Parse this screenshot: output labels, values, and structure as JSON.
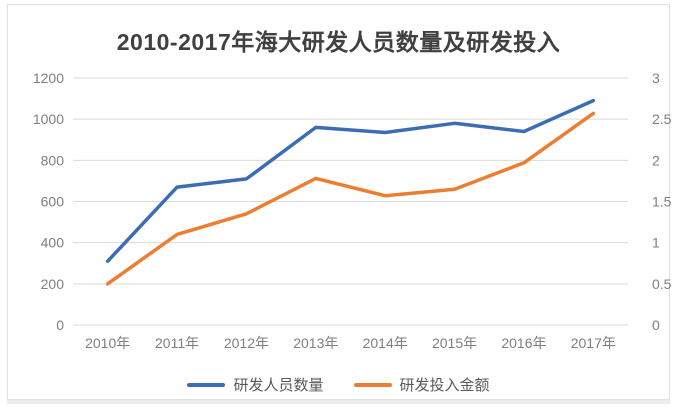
{
  "card": {
    "background": "#ffffff",
    "border_color": "#e0e0e0"
  },
  "chart_data": {
    "type": "line",
    "title": "2010-2017年海大研发人员数量及研发投入",
    "categories": [
      "2010年",
      "2011年",
      "2012年",
      "2013年",
      "2014年",
      "2015年",
      "2016年",
      "2017年"
    ],
    "series": [
      {
        "name": "研发人员数量",
        "axis": "left",
        "color": "#3c6db4",
        "values": [
          310,
          670,
          710,
          960,
          935,
          980,
          940,
          1090
        ]
      },
      {
        "name": "研发投入金额",
        "axis": "right",
        "color": "#ed7d31",
        "values": [
          0.5,
          1.1,
          1.35,
          1.78,
          1.57,
          1.65,
          1.97,
          2.57
        ]
      }
    ],
    "left_axis": {
      "min": 0,
      "max": 1200,
      "ticks": [
        0,
        200,
        400,
        600,
        800,
        1000,
        1200
      ]
    },
    "right_axis": {
      "min": 0,
      "max": 3,
      "ticks": [
        0,
        0.5,
        1,
        1.5,
        2,
        2.5,
        3
      ]
    },
    "grid": true,
    "gridline_color": "#d9d9d9",
    "tick_color": "#7f7f7f",
    "title_color": "#404040",
    "legend_position": "bottom",
    "line_width": 3.5
  }
}
